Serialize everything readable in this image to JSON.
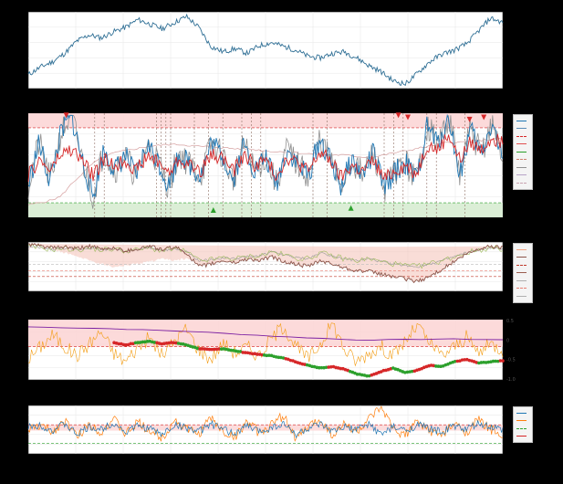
{
  "chart_data": [
    {
      "type": "line",
      "series": [
        {
          "values": [
            0.18,
            0.28,
            0.35,
            0.46,
            0.62,
            0.7,
            0.66,
            0.74,
            0.8,
            0.9,
            0.84,
            0.78,
            0.86,
            0.94,
            0.8,
            0.55,
            0.48,
            0.52,
            0.46,
            0.56,
            0.6,
            0.55,
            0.5,
            0.42,
            0.4,
            0.46,
            0.48,
            0.4,
            0.3,
            0.22,
            0.1,
            0.06,
            0.2,
            0.35,
            0.45,
            0.5,
            0.58,
            0.75,
            0.92,
            0.86
          ]
        }
      ],
      "colors": [
        "#2f6f95"
      ]
    },
    {
      "type": "line",
      "legend": [
        "",
        "",
        "",
        "",
        "",
        "",
        "",
        "",
        ""
      ],
      "colors": [
        "#1f77b4",
        "#5b8db8",
        "#d62728",
        "#e05050",
        "#2ca02c",
        "#d08070",
        "#909090",
        "#b7a4c8",
        "#c9a3b0"
      ],
      "upper_band": 0.86,
      "lower_band": 0.14,
      "series": [
        {
          "values": [
            0.3,
            0.72,
            0.35,
            0.8,
            0.98,
            0.55,
            0.2,
            0.65,
            0.45,
            0.6,
            0.38,
            0.7,
            0.55,
            0.3,
            0.62,
            0.5,
            0.4,
            0.72,
            0.6,
            0.36,
            0.7,
            0.45,
            0.58,
            0.32,
            0.66,
            0.5,
            0.4,
            0.75,
            0.55,
            0.3,
            0.55,
            0.4,
            0.62,
            0.28,
            0.44,
            0.52,
            0.36,
            0.88,
            0.7,
            0.98,
            0.4,
            0.85,
            0.6,
            0.92,
            0.55
          ]
        },
        {
          "values": [
            0.4,
            0.55,
            0.45,
            0.6,
            0.65,
            0.55,
            0.4,
            0.55,
            0.5,
            0.55,
            0.45,
            0.58,
            0.55,
            0.42,
            0.56,
            0.5,
            0.45,
            0.6,
            0.58,
            0.44,
            0.6,
            0.5,
            0.55,
            0.4,
            0.58,
            0.52,
            0.44,
            0.62,
            0.55,
            0.38,
            0.5,
            0.44,
            0.55,
            0.36,
            0.45,
            0.5,
            0.42,
            0.7,
            0.65,
            0.8,
            0.55,
            0.72,
            0.65,
            0.78,
            0.7
          ]
        },
        {
          "values": [
            0.12,
            0.14,
            0.16,
            0.2,
            0.32,
            0.42,
            0.52,
            0.58,
            0.62,
            0.64,
            0.66,
            0.68,
            0.69,
            0.7,
            0.7,
            0.69,
            0.68,
            0.68,
            0.67,
            0.66,
            0.66,
            0.65,
            0.64,
            0.63,
            0.63,
            0.62,
            0.61,
            0.61,
            0.6,
            0.6,
            0.59,
            0.58,
            0.58,
            0.6,
            0.62,
            0.64,
            0.66,
            0.68,
            0.7,
            0.72,
            0.72,
            0.73,
            0.74,
            0.75,
            0.76
          ]
        }
      ],
      "markers": [
        {
          "x": 0.08,
          "y": 0.98,
          "kind": "peak",
          "label": ""
        },
        {
          "x": 0.78,
          "y": 0.98,
          "kind": "peak",
          "label": ""
        },
        {
          "x": 0.8,
          "y": 0.96,
          "kind": "peak",
          "label": ""
        },
        {
          "x": 0.93,
          "y": 0.94,
          "kind": "peak",
          "label": ""
        },
        {
          "x": 0.96,
          "y": 0.96,
          "kind": "peak",
          "label": ""
        },
        {
          "x": 0.39,
          "y": 0.07,
          "kind": "trough",
          "label": ""
        },
        {
          "x": 0.68,
          "y": 0.09,
          "kind": "trough",
          "label": ""
        }
      ]
    },
    {
      "type": "line",
      "legend": [
        "",
        "",
        "",
        "",
        "",
        "",
        ""
      ],
      "colors": [
        "#f4a582",
        "#8c564b",
        "#c0392b",
        "#9b5d4f",
        "#b0b0b0",
        "#e67e72",
        "#b0b0b0"
      ],
      "series": [
        {
          "values": [
            0.95,
            0.92,
            0.88,
            0.9,
            0.86,
            0.92,
            0.85,
            0.88,
            0.82,
            0.86,
            0.92,
            0.84,
            0.9,
            0.78,
            0.5,
            0.55,
            0.62,
            0.58,
            0.66,
            0.62,
            0.7,
            0.6,
            0.55,
            0.5,
            0.62,
            0.55,
            0.48,
            0.42,
            0.4,
            0.35,
            0.3,
            0.25,
            0.2,
            0.3,
            0.45,
            0.6,
            0.75,
            0.85,
            0.92,
            0.88
          ]
        },
        {
          "values": [
            0.9,
            0.88,
            0.85,
            0.87,
            0.84,
            0.88,
            0.84,
            0.86,
            0.82,
            0.84,
            0.88,
            0.82,
            0.86,
            0.8,
            0.62,
            0.64,
            0.68,
            0.66,
            0.7,
            0.72,
            0.8,
            0.74,
            0.68,
            0.66,
            0.78,
            0.72,
            0.66,
            0.62,
            0.66,
            0.6,
            0.56,
            0.52,
            0.5,
            0.56,
            0.62,
            0.7,
            0.78,
            0.84,
            0.88,
            0.86
          ]
        }
      ]
    },
    {
      "type": "line",
      "legend": [],
      "colors": [
        "#7b1fa2",
        "#f39c12",
        "#d62728",
        "#2ca02c"
      ],
      "y_ticks": [
        "0.5",
        "0",
        "-0.5",
        "-1.0"
      ],
      "series": [
        {
          "values": [
            0.35,
            0.55,
            0.75,
            0.55,
            0.4,
            0.6,
            0.8,
            0.45,
            0.3,
            0.55,
            0.7,
            0.4,
            0.65,
            0.85,
            0.5,
            0.35,
            0.6,
            0.45,
            0.55,
            0.4,
            0.7,
            0.9,
            0.55,
            0.35,
            0.6,
            0.95,
            0.5,
            0.3,
            0.45,
            0.55,
            0.4,
            0.65,
            0.9,
            0.6,
            0.4,
            0.55,
            0.7,
            0.45,
            0.6,
            0.5
          ]
        },
        {
          "values": [
            0.88,
            0.85,
            0.8,
            0.72,
            0.66,
            0.68,
            0.66,
            0.62,
            0.58,
            0.62,
            0.64,
            0.6,
            0.62,
            0.58,
            0.52,
            0.5,
            0.52,
            0.48,
            0.45,
            0.42,
            0.4,
            0.36,
            0.3,
            0.24,
            0.2,
            0.22,
            0.18,
            0.1,
            0.06,
            0.14,
            0.2,
            0.12,
            0.16,
            0.24,
            0.22,
            0.3,
            0.34,
            0.28,
            0.3,
            0.32
          ]
        }
      ]
    },
    {
      "type": "line",
      "legend": [
        "",
        "",
        "",
        ""
      ],
      "colors": [
        "#1f77b4",
        "#ff7f0e",
        "#2ca02c",
        "#d62728"
      ],
      "series": [
        {
          "values": [
            0.55,
            0.6,
            0.48,
            0.62,
            0.4,
            0.55,
            0.5,
            0.65,
            0.45,
            0.58,
            0.52,
            0.4,
            0.6,
            0.55,
            0.45,
            0.62,
            0.5,
            0.42,
            0.58,
            0.46,
            0.55,
            0.62,
            0.4,
            0.52,
            0.6,
            0.45,
            0.55,
            0.5,
            0.62,
            0.4,
            0.55,
            0.48,
            0.6,
            0.52,
            0.45,
            0.58,
            0.5,
            0.62,
            0.55,
            0.48
          ]
        },
        {
          "values": [
            0.5,
            0.58,
            0.45,
            0.7,
            0.35,
            0.62,
            0.45,
            0.72,
            0.4,
            0.65,
            0.48,
            0.32,
            0.7,
            0.52,
            0.4,
            0.75,
            0.45,
            0.35,
            0.68,
            0.42,
            0.6,
            0.8,
            0.3,
            0.55,
            0.72,
            0.38,
            0.62,
            0.45,
            0.7,
            0.95,
            0.5,
            0.4,
            0.66,
            0.48,
            0.38,
            0.62,
            0.45,
            0.7,
            0.5,
            0.42
          ]
        }
      ]
    }
  ]
}
